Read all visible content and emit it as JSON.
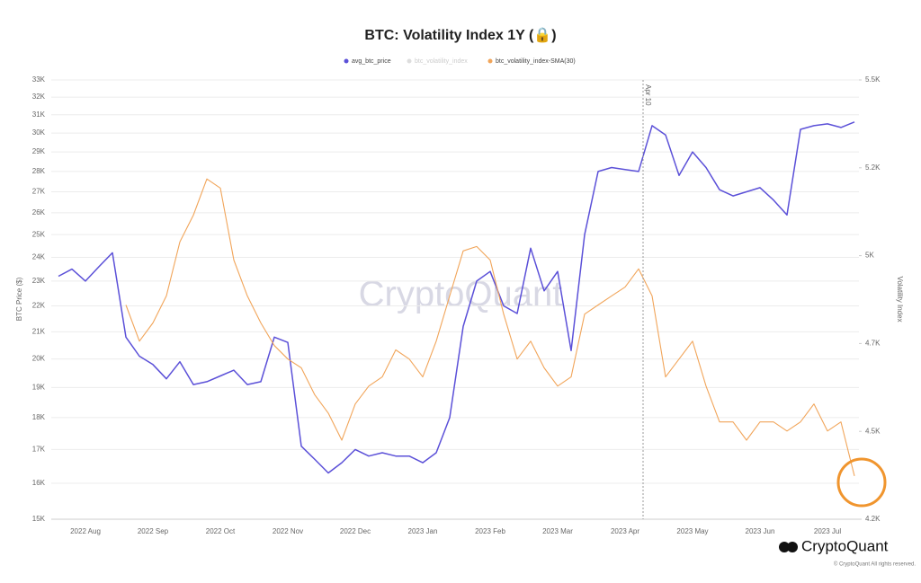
{
  "chart_data": {
    "type": "line",
    "title": "BTC: Volatility Index 1Y (🔒)",
    "y_label": "BTC Price ($)",
    "y2_label": "Volatility Index",
    "annotation": "Apr 10",
    "watermark": "CryptoQuant",
    "brand": "CryptoQuant",
    "copyright": "© CryptoQuant All rights reserved.",
    "legend_hidden": [
      "btc_volatility_index"
    ],
    "ylog": true,
    "grid": true,
    "categories": [
      null,
      null,
      "2022 Aug",
      null,
      null,
      null,
      null,
      "2022 Sep",
      null,
      null,
      null,
      null,
      "2022 Oct",
      null,
      null,
      null,
      null,
      "2022 Nov",
      null,
      null,
      null,
      null,
      "2022 Dec",
      null,
      null,
      null,
      null,
      "2023 Jan",
      null,
      null,
      null,
      null,
      "2023 Feb",
      null,
      null,
      null,
      null,
      "2023 Mar",
      null,
      null,
      null,
      null,
      "2023 Apr",
      null,
      null,
      null,
      null,
      "2023 May",
      null,
      null,
      null,
      null,
      "2023 Jun",
      null,
      null,
      null,
      null,
      "2023 Jul",
      null,
      null
    ],
    "series": [
      {
        "name": "avg_btc_price",
        "color": "#5b50d8",
        "values": [
          23200,
          23500,
          23000,
          23600,
          24200,
          20800,
          20100,
          19800,
          19300,
          19900,
          19100,
          19200,
          19400,
          19600,
          19100,
          19200,
          20800,
          20600,
          17100,
          16700,
          16300,
          16600,
          17000,
          16800,
          16900,
          16800,
          16800,
          16600,
          16900,
          18000,
          21200,
          23000,
          23400,
          22000,
          21700,
          24400,
          22600,
          23400,
          20300,
          25000,
          28000,
          28200,
          28100,
          28000,
          30400,
          29900,
          27800,
          29000,
          28200,
          27100,
          26800,
          27000,
          27200,
          26600,
          25900,
          30200,
          30400,
          30500,
          30300,
          30600
        ]
      },
      {
        "name": "btc_volatility_index-SMA(30)",
        "color": "#f1a55a",
        "axis": "y2",
        "values": [
          null,
          null,
          null,
          null,
          null,
          4834,
          4727,
          4781,
          4861,
          5021,
          5100,
          5207,
          5180,
          4967,
          4861,
          4781,
          4714,
          4674,
          4648,
          4568,
          4514,
          4434,
          4541,
          4594,
          4621,
          4701,
          4674,
          4621,
          4727,
          4861,
          4994,
          5007,
          4967,
          4807,
          4674,
          4727,
          4648,
          4594,
          4621,
          4807,
          4834,
          4861,
          4887,
          4941,
          4861,
          4621,
          4674,
          4727,
          4594,
          4488,
          4488,
          4434,
          4488,
          4488,
          4461,
          4488,
          4541,
          4461,
          4488,
          4328
        ]
      }
    ],
    "ylim": [
      15000,
      33000
    ],
    "yticks": [
      {
        "value": 15000,
        "label": "15K"
      },
      {
        "value": 16000,
        "label": "16K"
      },
      {
        "value": 17000,
        "label": "17K"
      },
      {
        "value": 18000,
        "label": "18K"
      },
      {
        "value": 19000,
        "label": "19K"
      },
      {
        "value": 20000,
        "label": "20K"
      },
      {
        "value": 21000,
        "label": "21K"
      },
      {
        "value": 22000,
        "label": "22K"
      },
      {
        "value": 23000,
        "label": "23K"
      },
      {
        "value": 24000,
        "label": "24K"
      },
      {
        "value": 25000,
        "label": "25K"
      },
      {
        "value": 26000,
        "label": "26K"
      },
      {
        "value": 27000,
        "label": "27K"
      },
      {
        "value": 28000,
        "label": "28K"
      },
      {
        "value": 29000,
        "label": "29K"
      },
      {
        "value": 30000,
        "label": "30K"
      },
      {
        "value": 31000,
        "label": "31K"
      },
      {
        "value": 32000,
        "label": "32K"
      },
      {
        "value": 33000,
        "label": "33K"
      }
    ],
    "y2lim": [
      4200,
      5500
    ],
    "y2ticks": [
      {
        "value": 4200,
        "label": "4.2K"
      },
      {
        "value": 4460,
        "label": "4.5K"
      },
      {
        "value": 4720,
        "label": "4.7K"
      },
      {
        "value": 4980,
        "label": "5K"
      },
      {
        "value": 5240,
        "label": "5.2K"
      },
      {
        "value": 5500,
        "label": "5.5K"
      }
    ]
  }
}
